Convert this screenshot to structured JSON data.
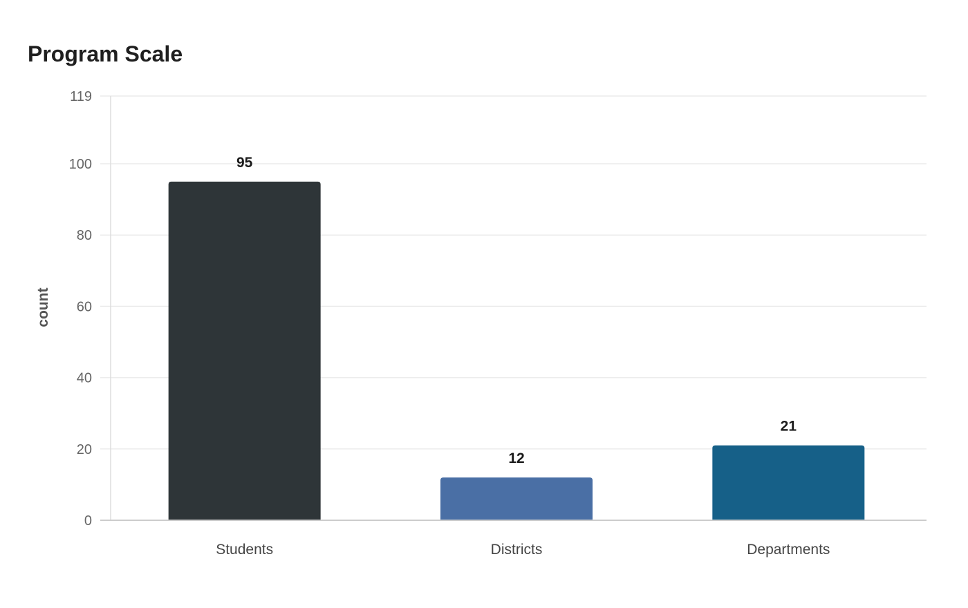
{
  "title": "Program Scale",
  "chart_data": {
    "type": "bar",
    "title": "Program Scale",
    "xlabel": "",
    "ylabel": "count",
    "categories": [
      "Students",
      "Districts",
      "Departments"
    ],
    "values": [
      95,
      12,
      21
    ],
    "colors": [
      "#2e3538",
      "#4a6fa5",
      "#166088"
    ],
    "ylim": [
      0,
      119
    ],
    "yticks": [
      0,
      20,
      40,
      60,
      80,
      100,
      119
    ],
    "grid": true,
    "legend": "none",
    "data_labels": true
  }
}
